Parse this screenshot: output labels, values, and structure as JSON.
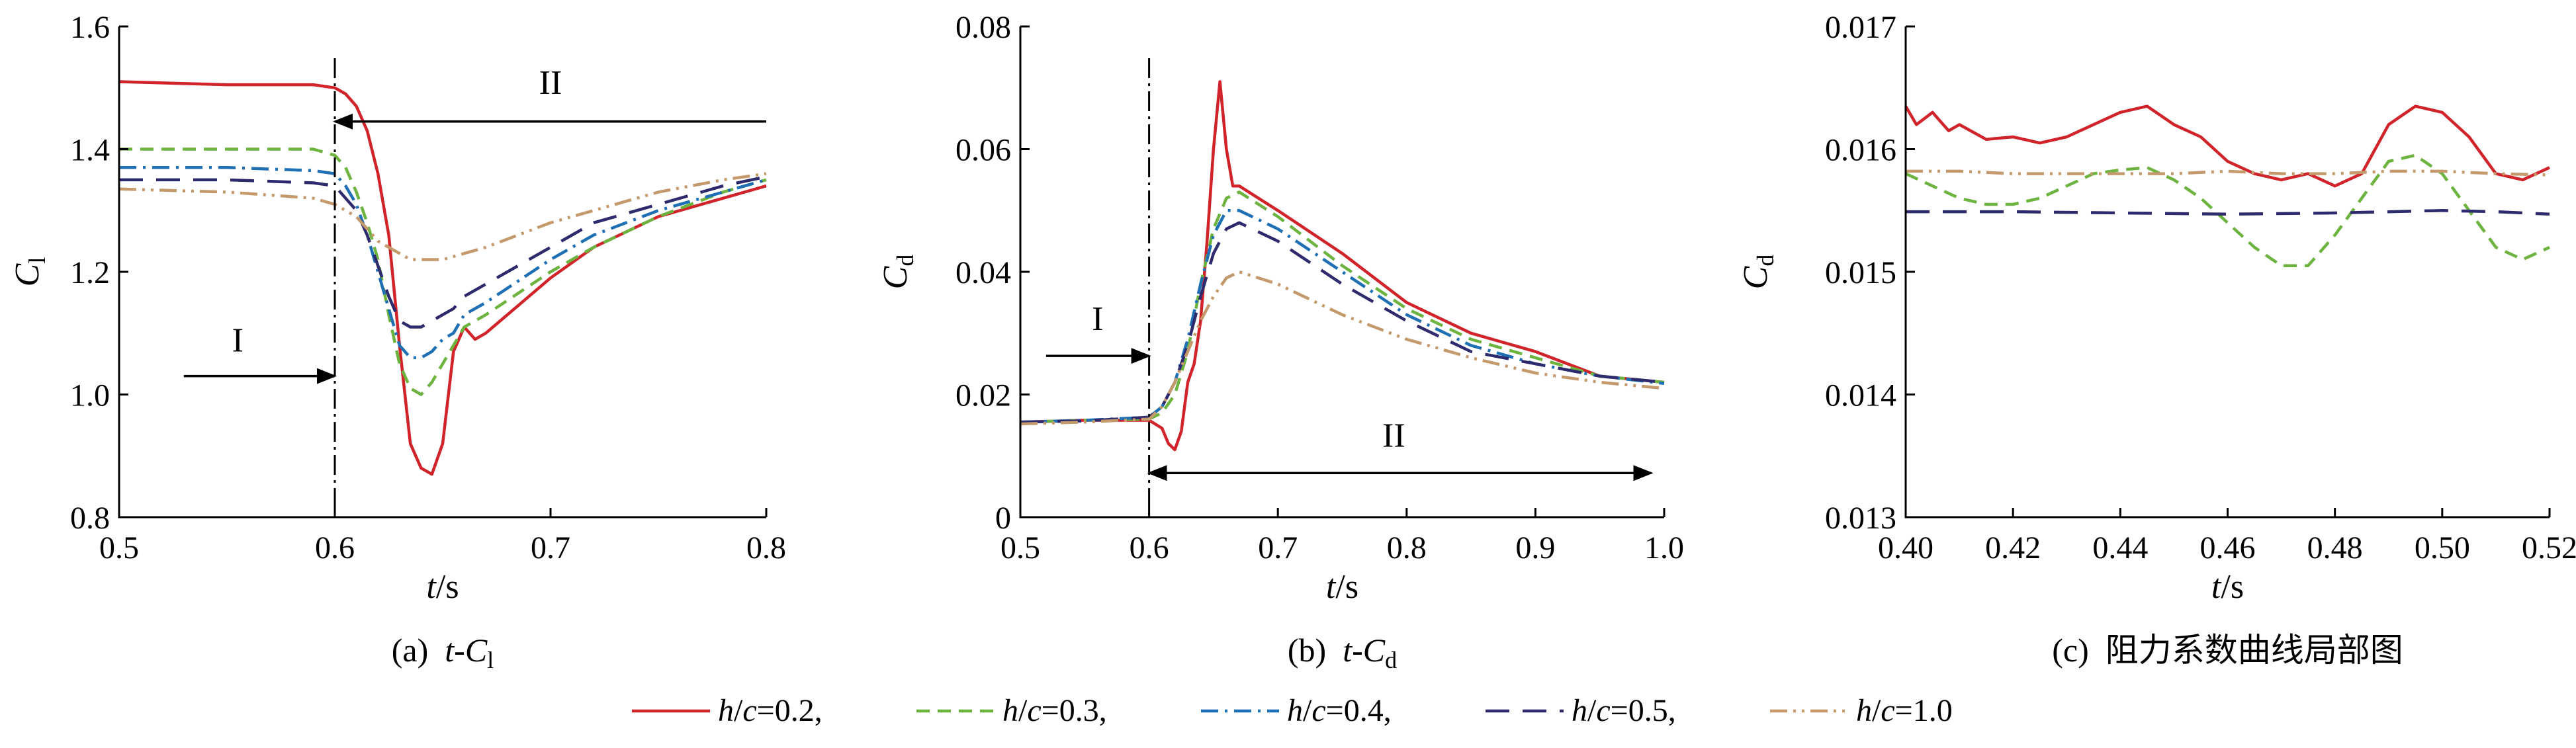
{
  "colors": {
    "h02": "#d0232a",
    "h03": "#6db33f",
    "h04": "#1f6fb5",
    "h05": "#2e2a6e",
    "h10": "#c49a6c"
  },
  "legend": [
    {
      "key": "h02",
      "label": "h/c=0.2,",
      "dash": "solid"
    },
    {
      "key": "h03",
      "label": "h/c=0.3,",
      "dash": "dash"
    },
    {
      "key": "h04",
      "label": "h/c=0.4,",
      "dash": "dashdot"
    },
    {
      "key": "h05",
      "label": "h/c=0.5,",
      "dash": "longdash"
    },
    {
      "key": "h10",
      "label": "h/c=1.0",
      "dash": "dashdotdot"
    }
  ],
  "chart_data": [
    {
      "type": "line",
      "caption": "(a)  t-Cl",
      "xlabel": "t/s",
      "ylabel": "Cl",
      "xlim": [
        0.5,
        0.8
      ],
      "ylim": [
        0.8,
        1.6
      ],
      "xticks": [
        "0.5",
        "0.6",
        "0.7",
        "0.8"
      ],
      "yticks": [
        "0.8",
        "1.0",
        "1.2",
        "1.4",
        "1.6"
      ],
      "vline": 0.6,
      "annotations": [
        {
          "text": "I",
          "from": [
            0.53,
            1.03
          ],
          "to": [
            0.6,
            1.03
          ],
          "label_at": [
            0.555,
            1.07
          ],
          "double": false
        },
        {
          "text": "II",
          "from": [
            0.8,
            1.445
          ],
          "to": [
            0.6,
            1.445
          ],
          "label_at": [
            0.7,
            1.49
          ],
          "double": false
        }
      ],
      "series": [
        {
          "key": "h02",
          "x": [
            0.5,
            0.55,
            0.59,
            0.6,
            0.605,
            0.61,
            0.615,
            0.62,
            0.625,
            0.63,
            0.635,
            0.64,
            0.645,
            0.65,
            0.655,
            0.66,
            0.665,
            0.67,
            0.68,
            0.7,
            0.72,
            0.75,
            0.78,
            0.8
          ],
          "y": [
            1.51,
            1.505,
            1.505,
            1.5,
            1.49,
            1.47,
            1.43,
            1.36,
            1.26,
            1.08,
            0.92,
            0.88,
            0.87,
            0.92,
            1.07,
            1.11,
            1.09,
            1.1,
            1.13,
            1.19,
            1.24,
            1.29,
            1.32,
            1.34
          ]
        },
        {
          "key": "h03",
          "x": [
            0.5,
            0.55,
            0.59,
            0.6,
            0.605,
            0.61,
            0.615,
            0.62,
            0.625,
            0.63,
            0.635,
            0.64,
            0.645,
            0.65,
            0.655,
            0.66,
            0.67,
            0.7,
            0.72,
            0.75,
            0.78,
            0.8
          ],
          "y": [
            1.4,
            1.4,
            1.4,
            1.39,
            1.37,
            1.33,
            1.28,
            1.22,
            1.13,
            1.05,
            1.01,
            1.0,
            1.02,
            1.05,
            1.08,
            1.11,
            1.13,
            1.2,
            1.24,
            1.29,
            1.33,
            1.35
          ]
        },
        {
          "key": "h04",
          "x": [
            0.5,
            0.55,
            0.59,
            0.6,
            0.605,
            0.61,
            0.615,
            0.62,
            0.625,
            0.63,
            0.635,
            0.64,
            0.645,
            0.65,
            0.655,
            0.66,
            0.67,
            0.7,
            0.72,
            0.75,
            0.78,
            0.8
          ],
          "y": [
            1.37,
            1.37,
            1.365,
            1.36,
            1.34,
            1.31,
            1.26,
            1.2,
            1.14,
            1.08,
            1.06,
            1.06,
            1.07,
            1.09,
            1.1,
            1.13,
            1.15,
            1.22,
            1.26,
            1.3,
            1.33,
            1.35
          ]
        },
        {
          "key": "h05",
          "x": [
            0.5,
            0.55,
            0.59,
            0.6,
            0.605,
            0.61,
            0.615,
            0.62,
            0.625,
            0.63,
            0.635,
            0.64,
            0.645,
            0.65,
            0.655,
            0.66,
            0.67,
            0.7,
            0.72,
            0.75,
            0.78,
            0.8
          ],
          "y": [
            1.35,
            1.35,
            1.345,
            1.34,
            1.32,
            1.3,
            1.26,
            1.21,
            1.16,
            1.12,
            1.11,
            1.11,
            1.12,
            1.13,
            1.14,
            1.16,
            1.18,
            1.24,
            1.28,
            1.31,
            1.34,
            1.355
          ]
        },
        {
          "key": "h10",
          "x": [
            0.5,
            0.55,
            0.59,
            0.6,
            0.605,
            0.61,
            0.615,
            0.62,
            0.625,
            0.63,
            0.635,
            0.64,
            0.645,
            0.65,
            0.66,
            0.67,
            0.7,
            0.72,
            0.75,
            0.78,
            0.8
          ],
          "y": [
            1.335,
            1.33,
            1.32,
            1.31,
            1.3,
            1.29,
            1.27,
            1.25,
            1.24,
            1.23,
            1.22,
            1.22,
            1.22,
            1.22,
            1.23,
            1.24,
            1.28,
            1.3,
            1.33,
            1.35,
            1.36
          ]
        }
      ]
    },
    {
      "type": "line",
      "caption": "(b)  t-Cd",
      "xlabel": "t/s",
      "ylabel": "Cd",
      "xlim": [
        0.5,
        1.0
      ],
      "ylim": [
        0,
        0.08
      ],
      "xticks": [
        "0.5",
        "0.6",
        "0.7",
        "0.8",
        "0.9",
        "1.0"
      ],
      "yticks": [
        "0",
        "0.02",
        "0.04",
        "0.06",
        "0.08"
      ],
      "vline": 0.6,
      "annotations": [
        {
          "text": "I",
          "from": [
            0.52,
            0.0263
          ],
          "to": [
            0.6,
            0.0263
          ],
          "label_at": [
            0.56,
            0.0305
          ],
          "double": false
        },
        {
          "text": "II",
          "from": [
            0.6,
            0.0072
          ],
          "to": [
            0.99,
            0.0072
          ],
          "label_at": [
            0.79,
            0.0115
          ],
          "double": true
        }
      ],
      "series": [
        {
          "key": "h02",
          "x": [
            0.5,
            0.55,
            0.6,
            0.61,
            0.615,
            0.62,
            0.625,
            0.63,
            0.635,
            0.64,
            0.645,
            0.65,
            0.655,
            0.66,
            0.665,
            0.67,
            0.7,
            0.75,
            0.8,
            0.85,
            0.9,
            0.95,
            1.0
          ],
          "y": [
            0.0155,
            0.0158,
            0.0158,
            0.0145,
            0.012,
            0.011,
            0.014,
            0.022,
            0.025,
            0.032,
            0.045,
            0.06,
            0.071,
            0.06,
            0.054,
            0.054,
            0.05,
            0.043,
            0.035,
            0.03,
            0.027,
            0.023,
            0.022
          ]
        },
        {
          "key": "h03",
          "x": [
            0.5,
            0.55,
            0.6,
            0.61,
            0.62,
            0.63,
            0.64,
            0.65,
            0.66,
            0.67,
            0.7,
            0.75,
            0.8,
            0.85,
            0.9,
            0.95,
            1.0
          ],
          "y": [
            0.0155,
            0.0158,
            0.016,
            0.017,
            0.02,
            0.027,
            0.038,
            0.047,
            0.052,
            0.053,
            0.049,
            0.041,
            0.034,
            0.029,
            0.026,
            0.023,
            0.022
          ]
        },
        {
          "key": "h04",
          "x": [
            0.5,
            0.55,
            0.6,
            0.61,
            0.62,
            0.63,
            0.64,
            0.65,
            0.66,
            0.67,
            0.7,
            0.75,
            0.8,
            0.85,
            0.9,
            0.95,
            1.0
          ],
          "y": [
            0.0155,
            0.0158,
            0.0163,
            0.018,
            0.022,
            0.029,
            0.038,
            0.046,
            0.05,
            0.05,
            0.047,
            0.04,
            0.033,
            0.028,
            0.025,
            0.023,
            0.0218
          ]
        },
        {
          "key": "h05",
          "x": [
            0.5,
            0.55,
            0.6,
            0.61,
            0.62,
            0.63,
            0.64,
            0.65,
            0.66,
            0.67,
            0.7,
            0.75,
            0.8,
            0.85,
            0.9,
            0.95,
            1.0
          ],
          "y": [
            0.0155,
            0.0157,
            0.0163,
            0.018,
            0.022,
            0.028,
            0.036,
            0.043,
            0.047,
            0.048,
            0.045,
            0.038,
            0.032,
            0.027,
            0.025,
            0.023,
            0.022
          ]
        },
        {
          "key": "h10",
          "x": [
            0.5,
            0.55,
            0.6,
            0.61,
            0.62,
            0.63,
            0.64,
            0.65,
            0.66,
            0.67,
            0.7,
            0.75,
            0.8,
            0.85,
            0.9,
            0.95,
            1.0
          ],
          "y": [
            0.0152,
            0.0155,
            0.016,
            0.018,
            0.022,
            0.027,
            0.032,
            0.036,
            0.039,
            0.04,
            0.038,
            0.033,
            0.029,
            0.026,
            0.0235,
            0.022,
            0.021
          ]
        }
      ]
    },
    {
      "type": "line",
      "caption": "(c)  阻力系数曲线局部图",
      "xlabel": "t/s",
      "ylabel": "Cd",
      "xlim": [
        0.4,
        0.52
      ],
      "ylim": [
        0.013,
        0.017
      ],
      "xticks": [
        "0.40",
        "0.42",
        "0.44",
        "0.46",
        "0.48",
        "0.50",
        "0.52"
      ],
      "yticks": [
        "0.013",
        "0.014",
        "0.015",
        "0.016",
        "0.017"
      ],
      "series": [
        {
          "key": "h02",
          "x": [
            0.4,
            0.402,
            0.405,
            0.408,
            0.41,
            0.415,
            0.42,
            0.425,
            0.43,
            0.435,
            0.44,
            0.445,
            0.45,
            0.455,
            0.46,
            0.465,
            0.47,
            0.475,
            0.48,
            0.485,
            0.49,
            0.495,
            0.5,
            0.505,
            0.51,
            0.515,
            0.52
          ],
          "y": [
            0.01635,
            0.0162,
            0.0163,
            0.01615,
            0.0162,
            0.01608,
            0.0161,
            0.01605,
            0.0161,
            0.0162,
            0.0163,
            0.01635,
            0.0162,
            0.0161,
            0.0159,
            0.0158,
            0.01575,
            0.0158,
            0.0157,
            0.0158,
            0.0162,
            0.01635,
            0.0163,
            0.0161,
            0.0158,
            0.01575,
            0.01585
          ]
        },
        {
          "key": "h03",
          "x": [
            0.4,
            0.405,
            0.41,
            0.415,
            0.42,
            0.425,
            0.43,
            0.435,
            0.44,
            0.445,
            0.45,
            0.455,
            0.46,
            0.465,
            0.47,
            0.475,
            0.48,
            0.485,
            0.49,
            0.495,
            0.5,
            0.505,
            0.51,
            0.515,
            0.52
          ],
          "y": [
            0.0158,
            0.0157,
            0.0156,
            0.01555,
            0.01555,
            0.0156,
            0.0157,
            0.0158,
            0.01583,
            0.01585,
            0.01575,
            0.0156,
            0.0154,
            0.0152,
            0.01505,
            0.01505,
            0.0153,
            0.0156,
            0.0159,
            0.01595,
            0.0158,
            0.0155,
            0.0152,
            0.0151,
            0.0152
          ]
        },
        {
          "key": "h05",
          "x": [
            0.4,
            0.42,
            0.44,
            0.46,
            0.48,
            0.5,
            0.51,
            0.52
          ],
          "y": [
            0.01549,
            0.01549,
            0.01548,
            0.01547,
            0.01548,
            0.0155,
            0.01549,
            0.01547
          ]
        },
        {
          "key": "h10",
          "x": [
            0.4,
            0.41,
            0.42,
            0.43,
            0.44,
            0.45,
            0.46,
            0.47,
            0.48,
            0.49,
            0.5,
            0.51,
            0.52
          ],
          "y": [
            0.01582,
            0.01582,
            0.0158,
            0.0158,
            0.0158,
            0.0158,
            0.01582,
            0.0158,
            0.0158,
            0.01582,
            0.01582,
            0.0158,
            0.01579
          ]
        }
      ]
    }
  ]
}
